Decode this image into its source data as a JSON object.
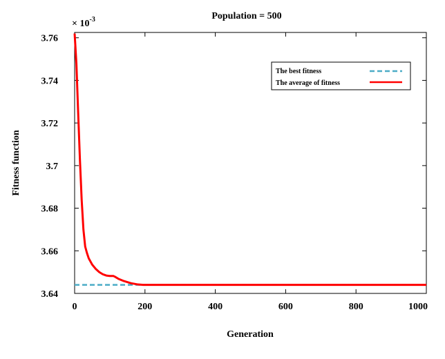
{
  "chart_data": {
    "type": "line",
    "title": "Population = 500",
    "xlabel": "Generation",
    "ylabel": "Fitness function",
    "y_multiplier_label": "× 10",
    "y_multiplier_exponent": "-3",
    "xlim": [
      0,
      1000
    ],
    "ylim": [
      3.64,
      3.7625
    ],
    "x_ticks": [
      0,
      200,
      400,
      600,
      800,
      1000
    ],
    "x_tick_labels": [
      "0",
      "200",
      "400",
      "600",
      "800",
      "1000"
    ],
    "y_ticks": [
      3.64,
      3.66,
      3.68,
      3.7,
      3.72,
      3.74,
      3.76
    ],
    "y_tick_labels": [
      "3.64",
      "3.66",
      "3.68",
      "3.7",
      "3.72",
      "3.74",
      "3.76"
    ],
    "grid": false,
    "legend_position": "top-right",
    "series": [
      {
        "name": "The best fitness",
        "color": "#4bacc6",
        "dash": "dashed",
        "x": [
          0,
          1000
        ],
        "y": [
          3.644,
          3.644
        ]
      },
      {
        "name": "The average of fitness",
        "color": "#ff0000",
        "dash": "solid",
        "x": [
          0,
          5,
          10,
          15,
          20,
          25,
          30,
          35,
          40,
          50,
          60,
          70,
          80,
          90,
          100,
          110,
          115,
          125,
          140,
          160,
          180,
          195,
          200,
          300,
          400,
          500,
          600,
          700,
          800,
          900,
          1000
        ],
        "y": [
          3.762,
          3.748,
          3.725,
          3.703,
          3.684,
          3.67,
          3.662,
          3.659,
          3.6565,
          3.6535,
          3.6515,
          3.65,
          3.649,
          3.6484,
          3.6482,
          3.6482,
          3.6478,
          3.6468,
          3.6458,
          3.6448,
          3.6442,
          3.644,
          3.644,
          3.644,
          3.644,
          3.644,
          3.644,
          3.644,
          3.644,
          3.644,
          3.644
        ]
      }
    ]
  }
}
